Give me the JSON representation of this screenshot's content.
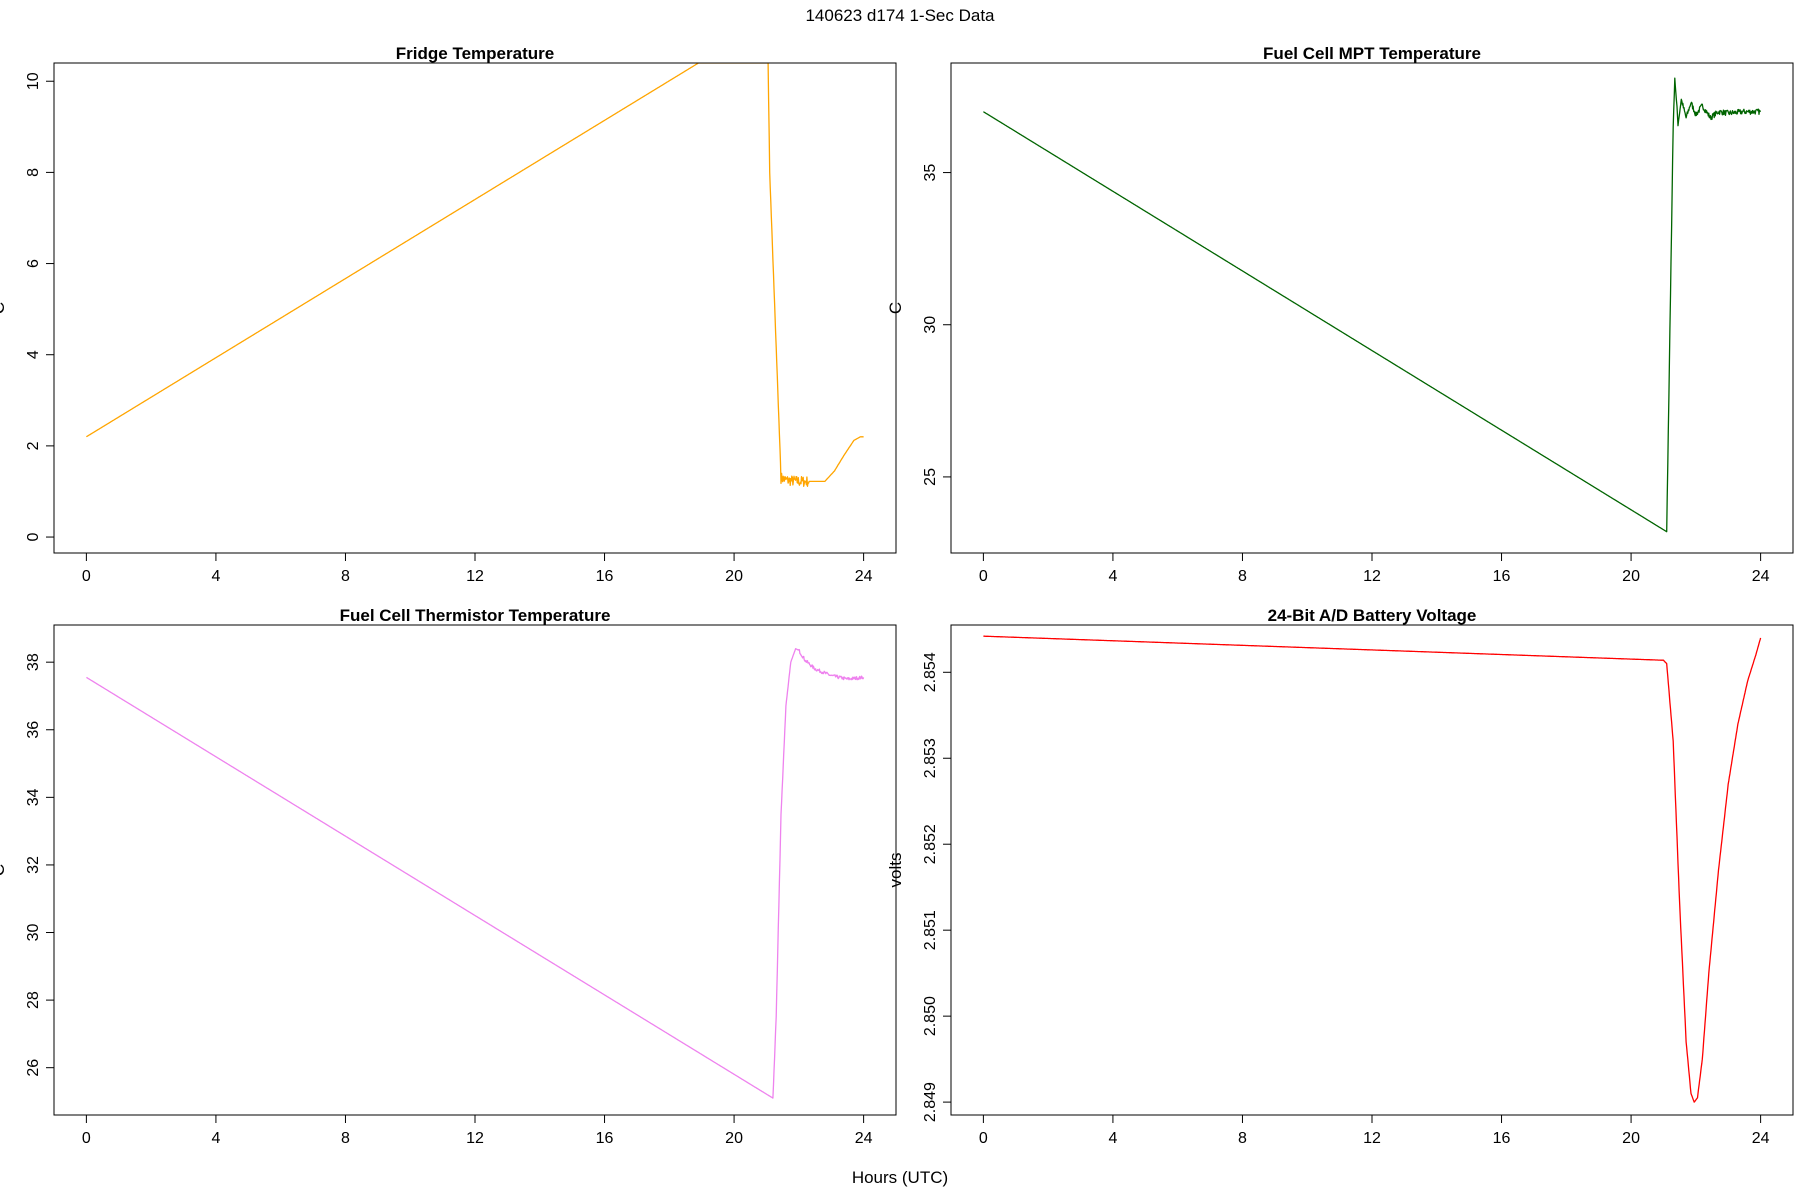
{
  "suptitle": "140623   d174   1-Sec Data",
  "xlabel": "Hours (UTC)",
  "chart_data": [
    {
      "type": "line",
      "title": "Fridge Temperature",
      "ylabel": "C",
      "xlim": [
        -1,
        25
      ],
      "ylim": [
        -0.35,
        10.4
      ],
      "xticks": [
        0,
        4,
        8,
        12,
        16,
        20,
        24
      ],
      "yticks": [
        "0",
        "2",
        "4",
        "6",
        "8",
        "10"
      ],
      "series": [
        {
          "color": "#FFA500",
          "x": [
            0,
            18.9,
            21.05,
            21.1,
            21.45,
            21.6,
            22.0,
            22.5,
            22.8,
            23.1,
            23.4,
            23.7,
            23.9,
            24
          ],
          "y": [
            2.2,
            10.4,
            10.4,
            8.0,
            1.3,
            1.25,
            1.22,
            1.22,
            1.22,
            1.45,
            1.8,
            2.12,
            2.2,
            2.2
          ],
          "noise": {
            "from": 21.45,
            "to": 22.3,
            "amplitude": 0.12
          }
        }
      ]
    },
    {
      "type": "line",
      "title": "Fuel Cell MPT Temperature",
      "ylabel": "C",
      "xlim": [
        -1,
        25
      ],
      "ylim": [
        22.5,
        38.6
      ],
      "xticks": [
        0,
        4,
        8,
        12,
        16,
        20,
        24
      ],
      "yticks": [
        "25",
        "30",
        "35"
      ],
      "series": [
        {
          "color": "#006400",
          "x": [
            0,
            21.1,
            21.3,
            21.35,
            21.45,
            21.55,
            21.7,
            21.85,
            22.0,
            22.2,
            22.45,
            22.7,
            23.0,
            23.5,
            24
          ],
          "y": [
            37.0,
            23.2,
            36.5,
            38.1,
            36.6,
            37.4,
            36.8,
            37.3,
            36.9,
            37.2,
            36.8,
            37.0,
            36.95,
            37.0,
            37.0
          ],
          "noise": {
            "from": 21.4,
            "to": 24,
            "amplitude": 0.09
          }
        }
      ]
    },
    {
      "type": "line",
      "title": "Fuel Cell Thermistor Temperature",
      "ylabel": "C",
      "xlim": [
        -1,
        25
      ],
      "ylim": [
        24.6,
        39.1
      ],
      "xticks": [
        0,
        4,
        8,
        12,
        16,
        20,
        24
      ],
      "yticks": [
        "26",
        "28",
        "30",
        "32",
        "34",
        "36",
        "38"
      ],
      "series": [
        {
          "color": "#EE82EE",
          "x": [
            0,
            21.2,
            21.3,
            21.45,
            21.6,
            21.75,
            21.9,
            22.0,
            22.2,
            22.5,
            23.0,
            23.5,
            24
          ],
          "y": [
            37.55,
            25.1,
            27.5,
            33.5,
            36.7,
            38.0,
            38.4,
            38.35,
            38.05,
            37.8,
            37.6,
            37.5,
            37.55
          ],
          "noise": {
            "from": 22.0,
            "to": 24,
            "amplitude": 0.05
          }
        }
      ]
    },
    {
      "type": "line",
      "title": "24-Bit A/D Battery Voltage",
      "ylabel": "volts",
      "xlim": [
        -1,
        25
      ],
      "ylim": [
        2.84885,
        2.85455
      ],
      "xticks": [
        0,
        4,
        8,
        12,
        16,
        20,
        24
      ],
      "yticks": [
        "2.849",
        "2.850",
        "2.851",
        "2.852",
        "2.853",
        "2.854"
      ],
      "series": [
        {
          "color": "#FF0000",
          "x": [
            0,
            21.0,
            21.1,
            21.3,
            21.5,
            21.7,
            21.85,
            21.95,
            22.05,
            22.2,
            22.4,
            22.7,
            23.0,
            23.3,
            23.6,
            23.85,
            24
          ],
          "y": [
            2.85442,
            2.85414,
            2.8541,
            2.8532,
            2.8513,
            2.8497,
            2.8491,
            2.849,
            2.84905,
            2.8495,
            2.8505,
            2.8517,
            2.8527,
            2.8534,
            2.8539,
            2.8542,
            2.8544
          ],
          "noise": null
        }
      ]
    }
  ]
}
